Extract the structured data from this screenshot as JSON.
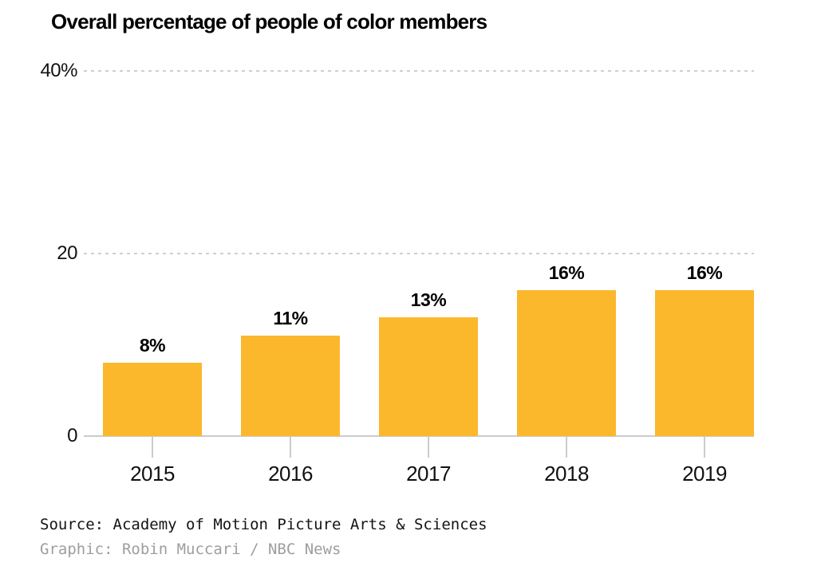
{
  "title": "Overall percentage of people of color members",
  "chart_data": {
    "type": "bar",
    "title": "Overall percentage of people of color members",
    "categories": [
      "2015",
      "2016",
      "2017",
      "2018",
      "2019"
    ],
    "values": [
      8,
      11,
      13,
      16,
      16
    ],
    "value_labels": [
      "8%",
      "11%",
      "13%",
      "16%",
      "16%"
    ],
    "xlabel": "",
    "ylabel": "",
    "ylim": [
      0,
      40
    ],
    "yticks": [
      {
        "value": 0,
        "label": "0",
        "line": "solid"
      },
      {
        "value": 20,
        "label": "20",
        "line": "dashed"
      },
      {
        "value": 40,
        "label": "40%",
        "line": "dashed"
      }
    ],
    "grid": "horizontal dashed",
    "legend": "none",
    "bar_color": "#FBB82D"
  },
  "footer": {
    "source": "Source: Academy of Motion Picture Arts & Sciences",
    "credit": "Graphic: Robin Muccari / NBC News"
  },
  "colors": {
    "bar": "#FBB82D",
    "axis_line": "#CCCCCC",
    "gridline": "#CFCFCF",
    "title_text": "#000000",
    "axis_text": "#111111",
    "source_text": "#141414",
    "credit_text": "#9E9E9E",
    "background": "#FFFFFF"
  }
}
